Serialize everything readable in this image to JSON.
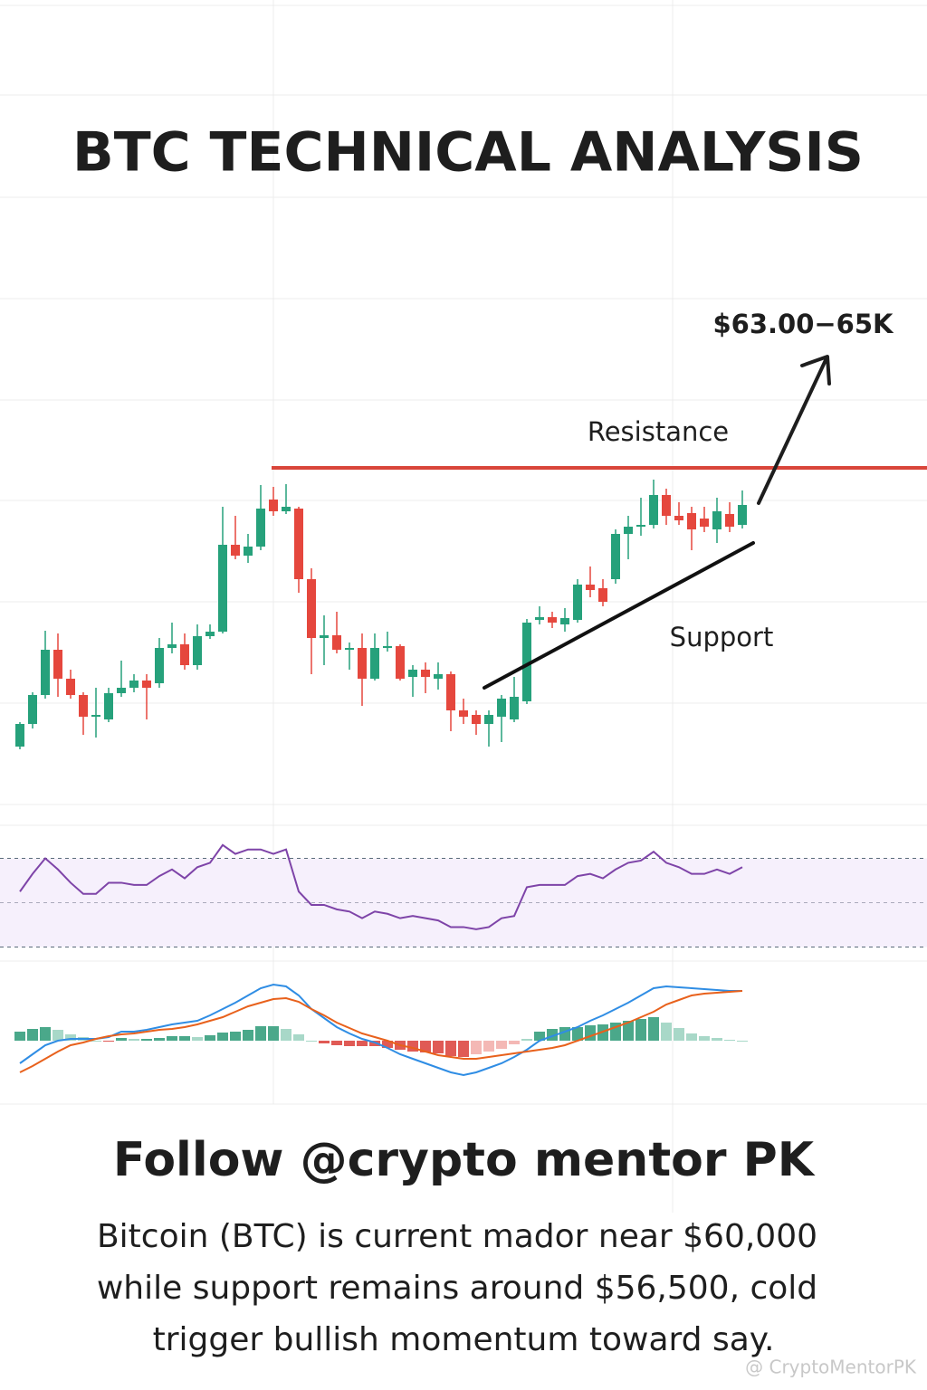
{
  "chart_data": [
    {
      "type": "candlestick",
      "title": "BTC TECHNICAL ANALYSIS",
      "open": [
        75,
        100,
        132,
        182,
        150,
        132,
        108,
        105,
        134,
        140,
        148,
        145,
        184,
        188,
        165,
        197,
        202,
        298,
        286,
        296,
        348,
        335,
        338,
        260,
        195,
        198,
        182,
        184,
        150,
        184,
        186,
        152,
        160,
        150,
        155,
        115,
        110,
        100,
        108,
        105,
        125,
        215,
        218,
        210,
        215,
        254,
        250,
        260,
        310,
        318,
        320,
        353,
        330,
        333,
        327,
        315,
        332,
        320
      ],
      "high": [
        102,
        135,
        203,
        200,
        160,
        135,
        140,
        140,
        170,
        155,
        155,
        195,
        212,
        200,
        210,
        210,
        340,
        330,
        310,
        364,
        362,
        365,
        340,
        272,
        220,
        224,
        190,
        200,
        200,
        202,
        188,
        165,
        168,
        168,
        158,
        128,
        115,
        115,
        132,
        152,
        216,
        230,
        224,
        228,
        260,
        274,
        260,
        315,
        330,
        350,
        370,
        360,
        345,
        340,
        340,
        350,
        345,
        358
      ],
      "low": [
        72,
        95,
        128,
        130,
        128,
        88,
        85,
        102,
        130,
        135,
        105,
        140,
        178,
        160,
        160,
        194,
        200,
        282,
        278,
        292,
        330,
        332,
        245,
        155,
        165,
        178,
        160,
        120,
        148,
        180,
        148,
        130,
        134,
        138,
        92,
        100,
        88,
        75,
        80,
        102,
        122,
        210,
        206,
        202,
        212,
        240,
        230,
        255,
        282,
        308,
        316,
        320,
        320,
        292,
        312,
        300,
        312,
        316
      ],
      "close": [
        100,
        132,
        182,
        150,
        132,
        108,
        110,
        134,
        140,
        148,
        140,
        184,
        188,
        165,
        197,
        202,
        298,
        286,
        296,
        338,
        335,
        340,
        260,
        195,
        198,
        182,
        184,
        150,
        184,
        186,
        150,
        160,
        152,
        155,
        115,
        108,
        100,
        110,
        128,
        130,
        212,
        218,
        212,
        217,
        254,
        248,
        235,
        310,
        318,
        320,
        353,
        330,
        325,
        315,
        318,
        335,
        318,
        342
      ],
      "ylim": [
        0,
        450
      ],
      "up_color": "#26a17b",
      "down_color": "#e5473d",
      "resistance": {
        "label": "Resistance",
        "value": 383,
        "color": "#d9453a"
      },
      "support": {
        "label": "Support",
        "values": [
          140,
          300
        ]
      },
      "target": "$63.00−65K"
    },
    {
      "type": "rsi",
      "color": "#7e44a8",
      "ylim": [
        20,
        80
      ],
      "bands": [
        30,
        70
      ],
      "midline": 50,
      "values": [
        55,
        63,
        70,
        65,
        59,
        54,
        54,
        59,
        59,
        58,
        58,
        62,
        65,
        61,
        66,
        68,
        76,
        72,
        74,
        74,
        72,
        74,
        55,
        49,
        49,
        47,
        46,
        43,
        46,
        45,
        43,
        44,
        43,
        42,
        39,
        39,
        38,
        39,
        43,
        44,
        57,
        58,
        58,
        58,
        62,
        63,
        61,
        65,
        68,
        69,
        73,
        68,
        66,
        63,
        63,
        65,
        63,
        66
      ]
    },
    {
      "type": "macd",
      "ylim": [
        -50,
        75
      ],
      "series": [
        {
          "color": "#2f8de4",
          "values": [
            -25,
            -15,
            -5,
            0,
            2,
            2,
            2,
            4,
            10,
            10,
            12,
            15,
            18,
            20,
            22,
            28,
            35,
            42,
            50,
            58,
            62,
            60,
            50,
            35,
            25,
            15,
            8,
            2,
            -2,
            -8,
            -15,
            -20,
            -25,
            -30,
            -35,
            -38,
            -35,
            -30,
            -25,
            -18,
            -10,
            0,
            5,
            10,
            15,
            22,
            28,
            35,
            42,
            50,
            58,
            60,
            59,
            58,
            57,
            56,
            55,
            55
          ]
        },
        {
          "color": "#e8611c",
          "values": [
            -35,
            -28,
            -20,
            -12,
            -5,
            -2,
            2,
            5,
            7,
            8,
            10,
            12,
            13,
            15,
            18,
            22,
            26,
            32,
            38,
            42,
            46,
            47,
            43,
            35,
            28,
            20,
            14,
            8,
            4,
            0,
            -5,
            -8,
            -12,
            -16,
            -18,
            -20,
            -20,
            -18,
            -16,
            -14,
            -12,
            -10,
            -8,
            -5,
            0,
            5,
            10,
            15,
            20,
            26,
            32,
            40,
            45,
            50,
            52,
            53,
            54,
            55
          ]
        }
      ],
      "histogram": [
        10,
        13,
        15,
        12,
        7,
        4,
        0,
        -1,
        3,
        2,
        2,
        3,
        5,
        5,
        4,
        6,
        9,
        10,
        12,
        16,
        16,
        13,
        7,
        0,
        -3,
        -5,
        -6,
        -6,
        -6,
        -8,
        -10,
        -12,
        -13,
        -14,
        -17,
        -18,
        -15,
        -12,
        -9,
        -4,
        2,
        10,
        13,
        15,
        15,
        17,
        18,
        20,
        22,
        24,
        26,
        20,
        14,
        8,
        5,
        3,
        1,
        0
      ],
      "footer": {
        "heading": "Follow @crypto mentor PK",
        "lines": [
          "Bitcoin (BTC) is current mador near  $60,000",
          "while support remains around $56,500, cold",
          "trigger bullish momentum toward say."
        ],
        "watermark": "@ CryptoMentorPK"
      }
    }
  ]
}
